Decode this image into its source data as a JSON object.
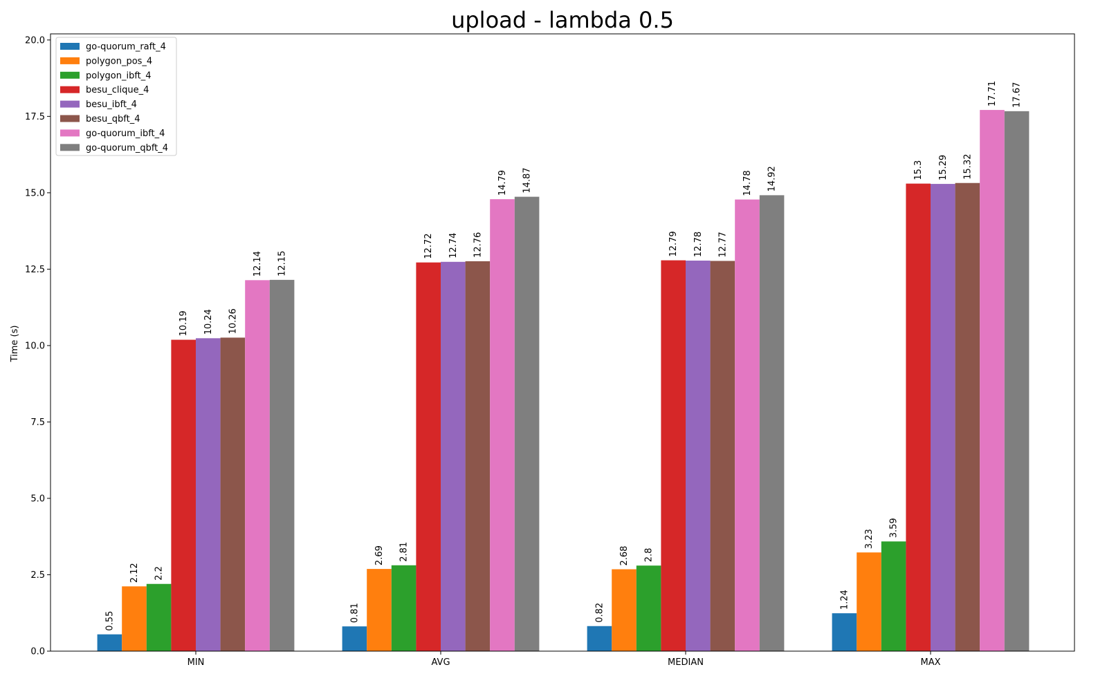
{
  "chart_data": {
    "type": "bar",
    "title": "upload - lambda 0.5",
    "xlabel": "",
    "ylabel": "Time (s)",
    "ylim": [
      0,
      20.2
    ],
    "yticks": [
      "0.0",
      "2.5",
      "5.0",
      "7.5",
      "10.0",
      "12.5",
      "15.0",
      "17.5",
      "20.0"
    ],
    "categories": [
      "MIN",
      "AVG",
      "MEDIAN",
      "MAX"
    ],
    "legend_position": "top-left",
    "grid": false,
    "series": [
      {
        "name": "go-quorum_raft_4",
        "color": "#1f77b4",
        "values": [
          0.55,
          0.81,
          0.82,
          1.24
        ]
      },
      {
        "name": "polygon_pos_4",
        "color": "#ff7f0e",
        "values": [
          2.12,
          2.69,
          2.68,
          3.23
        ]
      },
      {
        "name": "polygon_ibft_4",
        "color": "#2ca02c",
        "values": [
          2.2,
          2.81,
          2.8,
          3.59
        ]
      },
      {
        "name": "besu_clique_4",
        "color": "#d62728",
        "values": [
          10.19,
          12.72,
          12.79,
          15.3
        ]
      },
      {
        "name": "besu_ibft_4",
        "color": "#9467bd",
        "values": [
          10.24,
          12.74,
          12.78,
          15.29
        ]
      },
      {
        "name": "besu_qbft_4",
        "color": "#8c564b",
        "values": [
          10.26,
          12.76,
          12.77,
          15.32
        ]
      },
      {
        "name": "go-quorum_ibft_4",
        "color": "#e377c2",
        "values": [
          12.14,
          14.79,
          14.78,
          17.71
        ]
      },
      {
        "name": "go-quorum_qbft_4",
        "color": "#7f7f7f",
        "values": [
          12.15,
          14.87,
          14.92,
          17.67
        ]
      }
    ]
  }
}
